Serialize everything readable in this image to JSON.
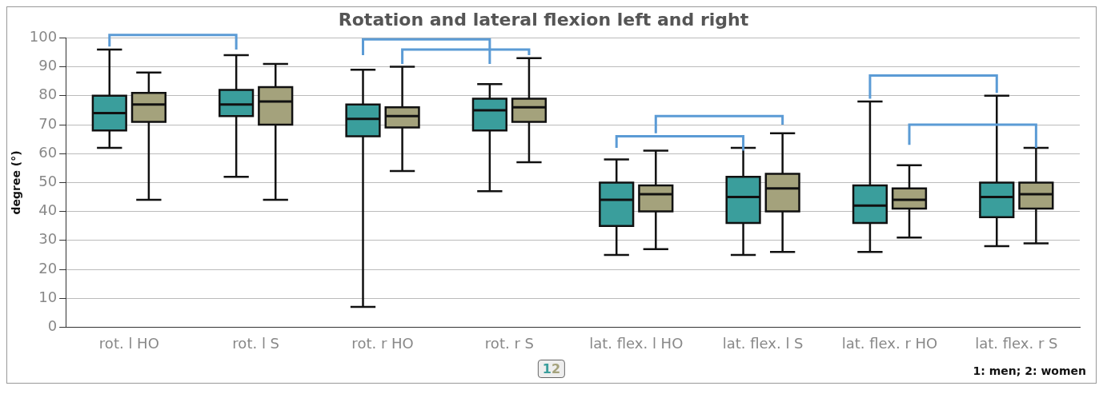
{
  "chart_data": {
    "type": "box",
    "title": "Rotation and lateral flexion left and right",
    "ylabel": "degree (°)",
    "categories": [
      "rot. l HO",
      "rot. l S",
      "rot. r HO",
      "rot. r S",
      "lat. flex. l HO",
      "lat. flex. l S",
      "lat. flex. r HO",
      "lat. flex. r S"
    ],
    "series": [
      {
        "name": "1",
        "color": "#3a9e9c",
        "boxes": [
          {
            "low": 62,
            "q1": 68,
            "median": 74,
            "q3": 80,
            "high": 96
          },
          {
            "low": 52,
            "q1": 73,
            "median": 77,
            "q3": 82,
            "high": 94
          },
          {
            "low": 7,
            "q1": 66,
            "median": 72,
            "q3": 77,
            "high": 89
          },
          {
            "low": 47,
            "q1": 68,
            "median": 75,
            "q3": 79,
            "high": 84
          },
          {
            "low": 25,
            "q1": 35,
            "median": 44,
            "q3": 50,
            "high": 58
          },
          {
            "low": 25,
            "q1": 36,
            "median": 45,
            "q3": 52,
            "high": 62
          },
          {
            "low": 26,
            "q1": 36,
            "median": 42,
            "q3": 49,
            "high": 78
          },
          {
            "low": 28,
            "q1": 38,
            "median": 45,
            "q3": 50,
            "high": 80
          }
        ]
      },
      {
        "name": "2",
        "color": "#a4a27c",
        "boxes": [
          {
            "low": 44,
            "q1": 71,
            "median": 77,
            "q3": 81,
            "high": 88
          },
          {
            "low": 44,
            "q1": 70,
            "median": 78,
            "q3": 83,
            "high": 91
          },
          {
            "low": 54,
            "q1": 69,
            "median": 73,
            "q3": 76,
            "high": 90
          },
          {
            "low": 57,
            "q1": 71,
            "median": 76,
            "q3": 79,
            "high": 93
          },
          {
            "low": 27,
            "q1": 40,
            "median": 46,
            "q3": 49,
            "high": 61
          },
          {
            "low": 26,
            "q1": 40,
            "median": 48,
            "q3": 53,
            "high": 67
          },
          {
            "low": 31,
            "q1": 41,
            "median": 44,
            "q3": 48,
            "high": 56
          },
          {
            "low": 29,
            "q1": 41,
            "median": 46,
            "q3": 50,
            "high": 62
          }
        ]
      }
    ],
    "ylim": [
      0,
      100
    ],
    "yticks": [
      0,
      10,
      20,
      30,
      40,
      50,
      60,
      70,
      80,
      90,
      100
    ],
    "grid": "y",
    "legend": "bottom",
    "annotations": [
      "1: men; 2: women"
    ]
  }
}
